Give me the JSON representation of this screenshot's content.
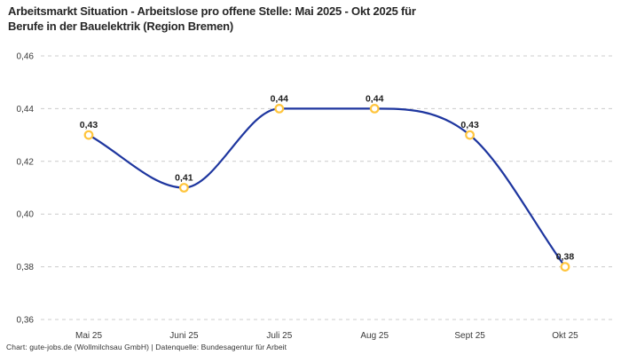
{
  "header": {
    "title_line1": "Arbeitsmarkt Situation - Arbeitslose pro offene Stelle: Mai 2025 - Okt 2025 für",
    "title_line2": "Berufe in der Bauelektrik (Region Bremen)"
  },
  "footer": {
    "credit": "Chart: gute-jobs.de (Wollmilchsau GmbH) | Datenquelle: Bundesagentur für Arbeit"
  },
  "chart_data": {
    "type": "line",
    "title": "Arbeitsmarkt Situation - Arbeitslose pro offene Stelle: Mai 2025 - Okt 2025 für Berufe in der Bauelektrik (Region Bremen)",
    "categories": [
      "Mai 25",
      "Juni 25",
      "Juli 25",
      "Aug 25",
      "Sept 25",
      "Okt 25"
    ],
    "values": [
      0.43,
      0.41,
      0.44,
      0.44,
      0.43,
      0.38
    ],
    "value_labels": [
      "0,43",
      "0,41",
      "0,44",
      "0,44",
      "0,43",
      "0,38"
    ],
    "xlabel": "",
    "ylabel": "",
    "ylim": [
      0.36,
      0.46
    ],
    "y_ticks": {
      "values": [
        0.46,
        0.44,
        0.42,
        0.4,
        0.38,
        0.36
      ],
      "labels": [
        "0,46",
        "0,44",
        "0,42",
        "0,40",
        "0,38",
        "0,36"
      ]
    },
    "grid": "horizontal-dashed",
    "legend": "none",
    "curve": "monotone",
    "colors": {
      "line": "#1e369f",
      "marker_fill": "#ffffff",
      "marker_stroke": "#ffc53d",
      "grid": "#cccccc"
    }
  }
}
